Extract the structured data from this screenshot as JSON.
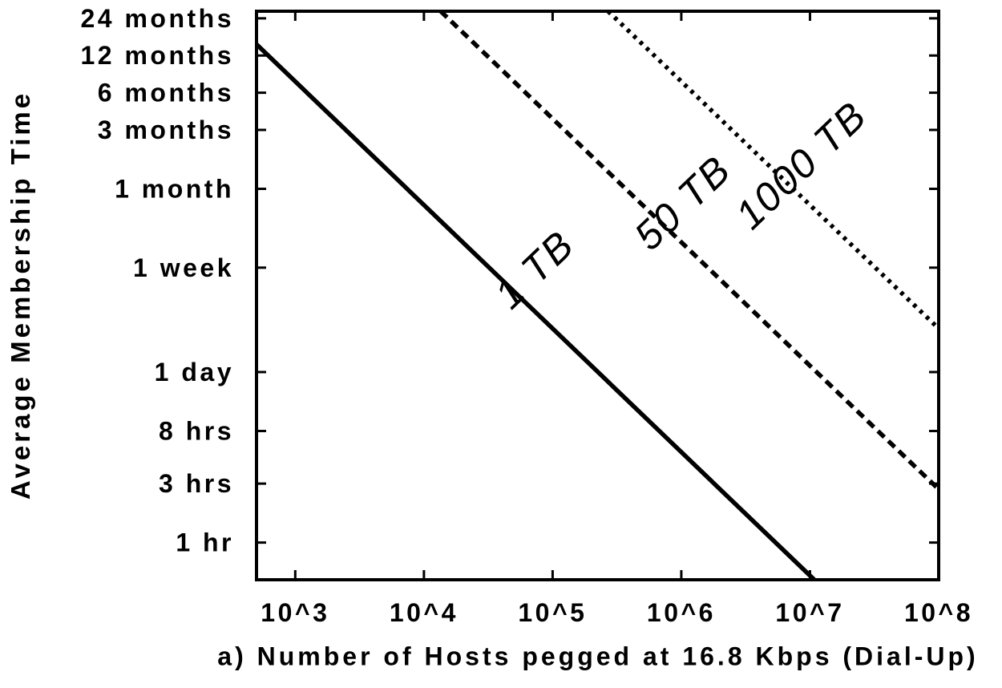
{
  "colors": {
    "foreground": "#000000",
    "background": "#ffffff"
  },
  "chart_data": {
    "type": "line",
    "subtype": "log-log contour plot, slope -1 lines of constant hosts x hours",
    "xlabel": "a) Number of Hosts pegged at 16.8 Kbps (Dial-Up)",
    "ylabel": "Average Membership Time",
    "grid": false,
    "legend": "inline rotated labels along each line",
    "x_axis": {
      "scale": "log10",
      "quantity": "number of hosts",
      "min": 500,
      "max": 100000000,
      "ticks": [
        {
          "value": 1000,
          "label": "10^3"
        },
        {
          "value": 10000,
          "label": "10^4"
        },
        {
          "value": 100000,
          "label": "10^5"
        },
        {
          "value": 1000000,
          "label": "10^6"
        },
        {
          "value": 10000000,
          "label": "10^7"
        },
        {
          "value": 100000000,
          "label": "10^8"
        }
      ]
    },
    "y_axis": {
      "scale": "log10",
      "quantity": "average membership time",
      "unit": "hours",
      "min": 0.5,
      "max": 20000,
      "ticks": [
        {
          "value": 1,
          "label": "1 hr"
        },
        {
          "value": 3,
          "label": "3 hrs"
        },
        {
          "value": 8,
          "label": "8 hrs"
        },
        {
          "value": 24,
          "label": "1 day"
        },
        {
          "value": 168,
          "label": "1 week"
        },
        {
          "value": 730,
          "label": "1 month"
        },
        {
          "value": 2190,
          "label": "3 months"
        },
        {
          "value": 4380,
          "label": "6 months"
        },
        {
          "value": 8760,
          "label": "12 months"
        },
        {
          "value": 17520,
          "label": "24 months"
        }
      ]
    },
    "series": [
      {
        "name": "1 TB",
        "line_style": "solid",
        "relation": "hosts * hours = constant",
        "host_hours_constant": 5400000,
        "points": [
          {
            "hosts": 500,
            "hours": 10800
          },
          {
            "hosts": 10800000,
            "hours": 0.5
          }
        ],
        "label": {
          "text": "1 TB",
          "hosts": 72000,
          "hours": 163
        }
      },
      {
        "name": "50 TB",
        "line_style": "dashed",
        "relation": "hosts * hours = constant",
        "host_hours_constant": 270000000,
        "points": [
          {
            "hosts": 13500,
            "hours": 20000
          },
          {
            "hosts": 100000000,
            "hours": 2.7
          }
        ],
        "label": {
          "text": "50 TB",
          "hosts": 1020000,
          "hours": 565
        }
      },
      {
        "name": "1000 TB",
        "line_style": "dotted",
        "relation": "hosts * hours = constant",
        "host_hours_constant": 5400000000,
        "points": [
          {
            "hosts": 270000,
            "hours": 20000
          },
          {
            "hosts": 100000000,
            "hours": 54
          }
        ],
        "label": {
          "text": "1000 TB",
          "hosts": 8500000,
          "hours": 1140
        }
      }
    ]
  }
}
